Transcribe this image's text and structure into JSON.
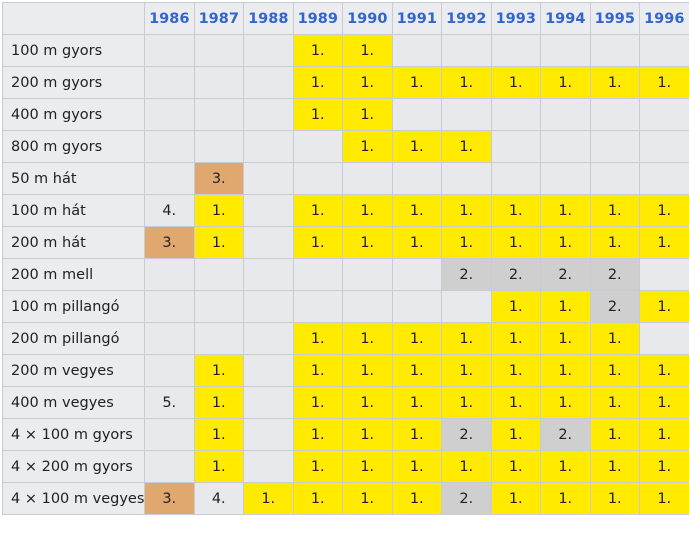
{
  "years": [
    "1986",
    "1987",
    "1988",
    "1989",
    "1990",
    "1991",
    "1992",
    "1993",
    "1994",
    "1995",
    "1996"
  ],
  "colors": {
    "gold": "#ffea00",
    "silver": "#cfcfcf",
    "bronze": "#e0a86e",
    "header_text": "#3366cc"
  },
  "rows": [
    {
      "event": "100 m gyors",
      "cells": [
        "",
        "",
        "",
        "1.",
        "1.",
        "",
        "",
        "",
        "",
        "",
        ""
      ]
    },
    {
      "event": "200 m gyors",
      "cells": [
        "",
        "",
        "",
        "1.",
        "1.",
        "1.",
        "1.",
        "1.",
        "1.",
        "1.",
        "1."
      ]
    },
    {
      "event": "400 m gyors",
      "cells": [
        "",
        "",
        "",
        "1.",
        "1.",
        "",
        "",
        "",
        "",
        "",
        ""
      ]
    },
    {
      "event": "800 m gyors",
      "cells": [
        "",
        "",
        "",
        "",
        "1.",
        "1.",
        "1.",
        "",
        "",
        "",
        ""
      ]
    },
    {
      "event": "50 m hát",
      "cells": [
        "",
        "3.",
        "",
        "",
        "",
        "",
        "",
        "",
        "",
        "",
        ""
      ]
    },
    {
      "event": "100 m hát",
      "cells": [
        "4.",
        "1.",
        "",
        "1.",
        "1.",
        "1.",
        "1.",
        "1.",
        "1.",
        "1.",
        "1."
      ]
    },
    {
      "event": "200 m hát",
      "cells": [
        "3.",
        "1.",
        "",
        "1.",
        "1.",
        "1.",
        "1.",
        "1.",
        "1.",
        "1.",
        "1."
      ]
    },
    {
      "event": "200 m mell",
      "cells": [
        "",
        "",
        "",
        "",
        "",
        "",
        "2.",
        "2.",
        "2.",
        "2.",
        ""
      ]
    },
    {
      "event": "100 m pillangó",
      "cells": [
        "",
        "",
        "",
        "",
        "",
        "",
        "",
        "1.",
        "1.",
        "2.",
        "1."
      ]
    },
    {
      "event": "200 m pillangó",
      "cells": [
        "",
        "",
        "",
        "1.",
        "1.",
        "1.",
        "1.",
        "1.",
        "1.",
        "1.",
        ""
      ]
    },
    {
      "event": "200 m vegyes",
      "cells": [
        "",
        "1.",
        "",
        "1.",
        "1.",
        "1.",
        "1.",
        "1.",
        "1.",
        "1.",
        "1."
      ]
    },
    {
      "event": "400 m vegyes",
      "cells": [
        "5.",
        "1.",
        "",
        "1.",
        "1.",
        "1.",
        "1.",
        "1.",
        "1.",
        "1.",
        "1."
      ]
    },
    {
      "event": "4 × 100 m gyors",
      "cells": [
        "",
        "1.",
        "",
        "1.",
        "1.",
        "1.",
        "2.",
        "1.",
        "2.",
        "1.",
        "1."
      ]
    },
    {
      "event": "4 × 200 m gyors",
      "cells": [
        "",
        "1.",
        "",
        "1.",
        "1.",
        "1.",
        "1.",
        "1.",
        "1.",
        "1.",
        "1."
      ]
    },
    {
      "event": "4 × 100 m vegyes",
      "cells": [
        "3.",
        "4.",
        "1.",
        "1.",
        "1.",
        "1.",
        "2.",
        "1.",
        "1.",
        "1.",
        "1."
      ]
    }
  ]
}
